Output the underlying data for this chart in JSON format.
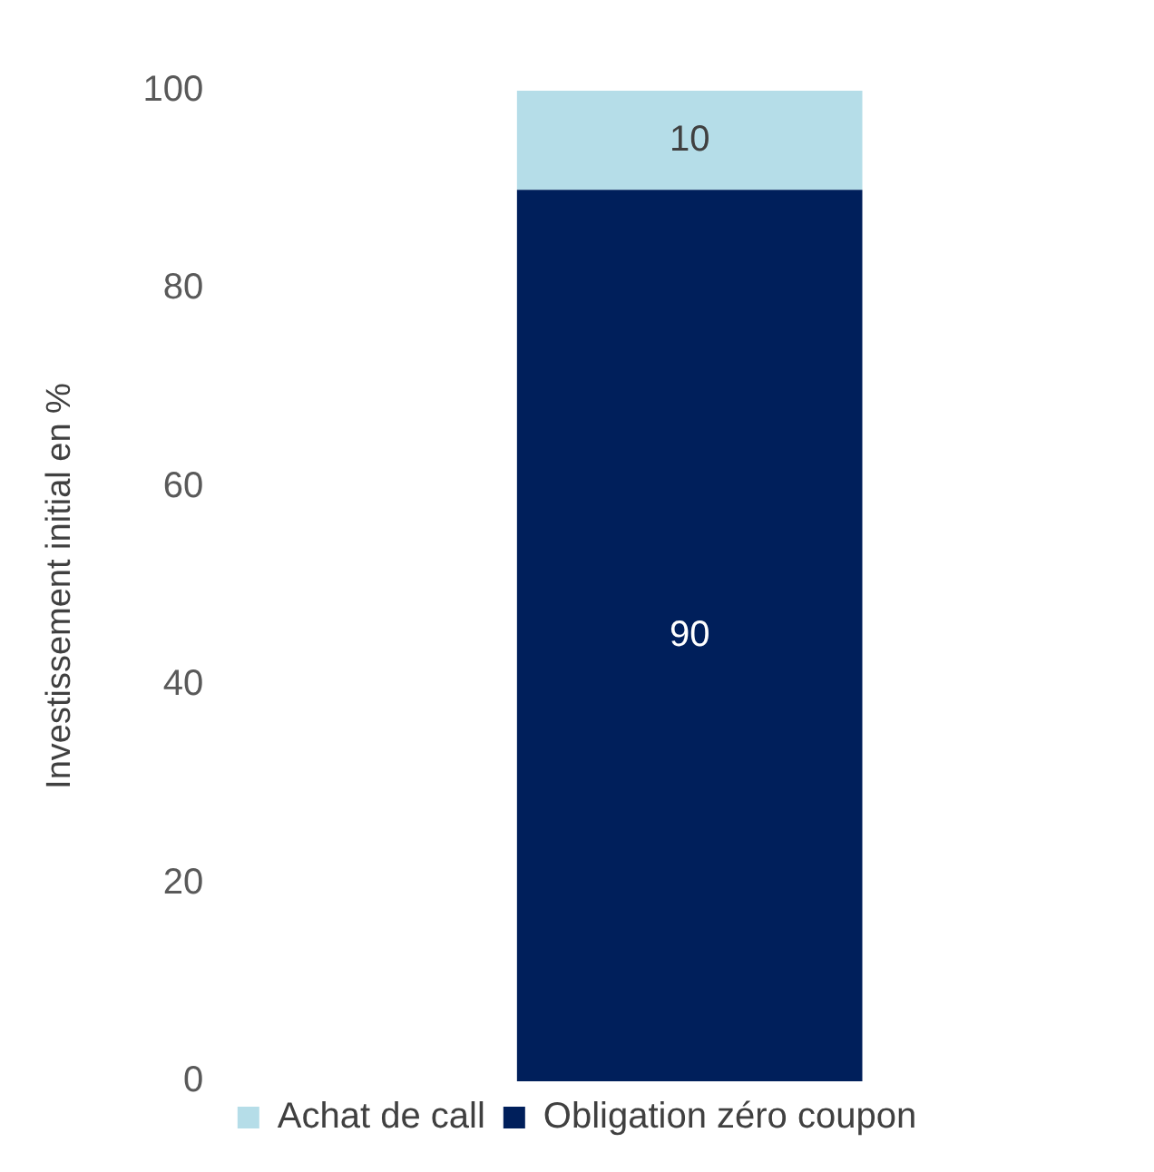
{
  "chart_data": {
    "type": "bar",
    "ylabel": "Investissement initial en %",
    "categories": [
      null
    ],
    "stacked": true,
    "series": [
      {
        "name": "Obligation zéro coupon",
        "color": "#001f5b",
        "values": [
          90
        ]
      },
      {
        "name": "Achat de call",
        "color": "#b5dde8",
        "values": [
          10
        ]
      }
    ],
    "ylim": [
      0,
      100
    ],
    "yticks": [
      0,
      20,
      40,
      60,
      80,
      100
    ],
    "grid": false,
    "legend": "bottom",
    "data_labels": true,
    "tick_labels": "y"
  }
}
